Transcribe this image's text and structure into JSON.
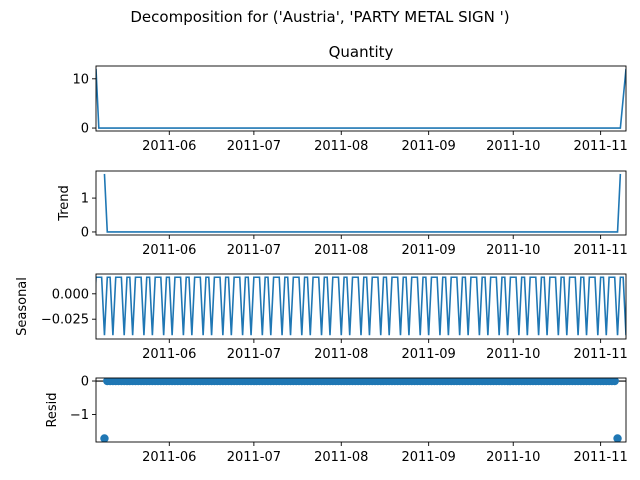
{
  "chart_data": {
    "type": "line",
    "suptitle": "Decomposition for ('Austria', 'PARTY METAL SIGN ')",
    "x_tick_labels": [
      "2011-06",
      "2011-07",
      "2011-08",
      "2011-09",
      "2011-10",
      "2011-11"
    ],
    "x_tick_dates": [
      "2011-06-01",
      "2011-07-01",
      "2011-08-01",
      "2011-09-01",
      "2011-10-01",
      "2011-11-01"
    ],
    "x_range": [
      "2011-05-06",
      "2011-11-10"
    ],
    "panels": [
      {
        "id": "observed",
        "title": "Quantity",
        "ylabel": "",
        "ylim": [
          -0.6,
          12.6
        ],
        "yticks": [
          0,
          10
        ],
        "ytick_labels": [
          "0",
          "10"
        ],
        "style": "line",
        "x": [
          "2011-05-06",
          "2011-05-07",
          "2011-11-08",
          "2011-11-10"
        ],
        "y": [
          12,
          0,
          0,
          12
        ]
      },
      {
        "id": "trend",
        "title": "",
        "ylabel": "Trend",
        "ylim": [
          -0.09,
          1.8
        ],
        "yticks": [
          0,
          1
        ],
        "ytick_labels": [
          "0",
          "1"
        ],
        "style": "line",
        "x": [
          "2011-05-09",
          "2011-05-10",
          "2011-11-07",
          "2011-11-08"
        ],
        "y": [
          1.714,
          0,
          0,
          1.714
        ]
      },
      {
        "id": "seasonal",
        "title": "",
        "ylabel": "Seasonal",
        "ylim": [
          -0.0445,
          0.0195
        ],
        "yticks": [
          0.0,
          -0.025
        ],
        "ytick_labels": [
          "0.000",
          "−0.025"
        ],
        "style": "weekly",
        "period_days": 7,
        "pattern": [
          0.0163,
          0.0163,
          0.0163,
          -0.0408,
          0.0163,
          0.0163,
          -0.0408
        ]
      },
      {
        "id": "resid",
        "title": "",
        "ylabel": "Resid",
        "ylim": [
          -1.82,
          0.09
        ],
        "yticks": [
          0,
          -1
        ],
        "ytick_labels": [
          "0",
          "−1"
        ],
        "style": "scatter",
        "zero_line": true,
        "default_y": 0,
        "first_date": "2011-05-09",
        "last_date": "2011-11-07",
        "outliers": [
          {
            "x": "2011-05-09",
            "y": -1.714
          },
          {
            "x": "2011-11-07",
            "y": -1.714
          }
        ]
      }
    ],
    "grid": false,
    "legend": "none",
    "line_color": "#1f77b4"
  }
}
